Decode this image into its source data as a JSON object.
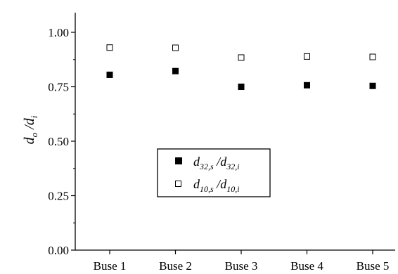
{
  "chart_data": {
    "type": "scatter",
    "categories": [
      "Buse 1",
      "Buse 2",
      "Buse 3",
      "Buse 4",
      "Buse 5"
    ],
    "ylim": [
      0.0,
      1.0
    ],
    "yticks": [
      "0.00",
      "0.25",
      "0.50",
      "0.75",
      "1.00"
    ],
    "ylabel": {
      "d": "d",
      "sub_o": "o",
      "sep": " /",
      "d2": "d",
      "sub_i": "i"
    },
    "grid": false,
    "legend_position": "center",
    "series": [
      {
        "marker": "filled-square",
        "color": "#000000",
        "values": [
          0.805,
          0.822,
          0.75,
          0.757,
          0.754
        ],
        "legend": {
          "d": "d",
          "sub1": "32,s",
          "sep": " /",
          "d2": "d",
          "sub2": "32,i"
        }
      },
      {
        "marker": "open-square",
        "color": "#000000",
        "values": [
          0.93,
          0.929,
          0.884,
          0.889,
          0.887
        ],
        "legend": {
          "d": "d",
          "sub1": "10,s",
          "sep": " /",
          "d2": "d",
          "sub2": "10,i"
        }
      }
    ]
  }
}
